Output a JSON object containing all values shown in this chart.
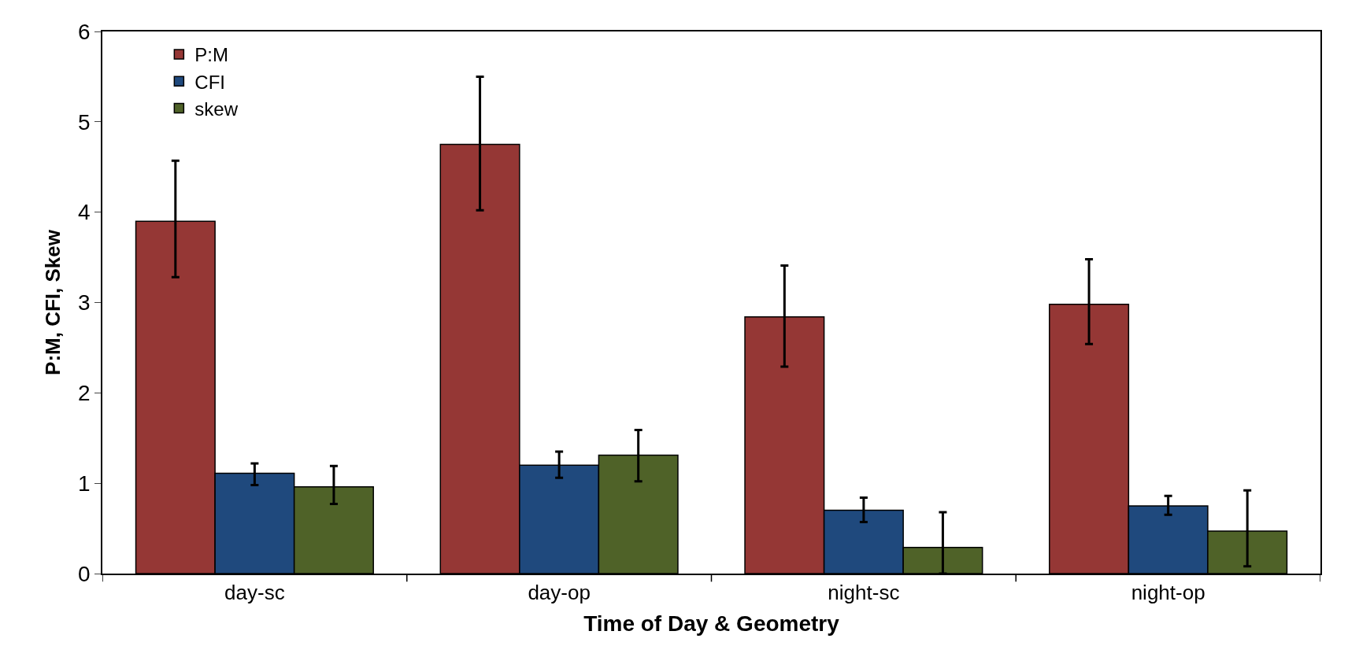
{
  "chart_data": {
    "type": "bar",
    "xlabel": "Time of Day & Geometry",
    "ylabel": "P:M, CFI, Skew",
    "categories": [
      "day-sc",
      "day-op",
      "night-sc",
      "night-op"
    ],
    "series": [
      {
        "name": "P:M",
        "color": "#953735",
        "values": [
          3.9,
          4.75,
          2.84,
          2.98
        ],
        "errors": [
          [
            3.28,
            4.57
          ],
          [
            4.02,
            5.5
          ],
          [
            2.29,
            3.41
          ],
          [
            2.54,
            3.48
          ]
        ]
      },
      {
        "name": "CFI",
        "color": "#1f497d",
        "values": [
          1.11,
          1.2,
          0.7,
          0.75
        ],
        "errors": [
          [
            0.98,
            1.22
          ],
          [
            1.06,
            1.35
          ],
          [
            0.57,
            0.84
          ],
          [
            0.65,
            0.86
          ]
        ]
      },
      {
        "name": "skew",
        "color": "#4f6228",
        "values": [
          0.96,
          1.31,
          0.29,
          0.47
        ],
        "errors": [
          [
            0.77,
            1.19
          ],
          [
            1.02,
            1.59
          ],
          [
            0,
            0.68
          ],
          [
            0.08,
            0.92
          ]
        ]
      }
    ],
    "ylim": [
      0,
      6
    ],
    "yticks": [
      0,
      1,
      2,
      3,
      4,
      5,
      6
    ],
    "legend": "top left"
  }
}
